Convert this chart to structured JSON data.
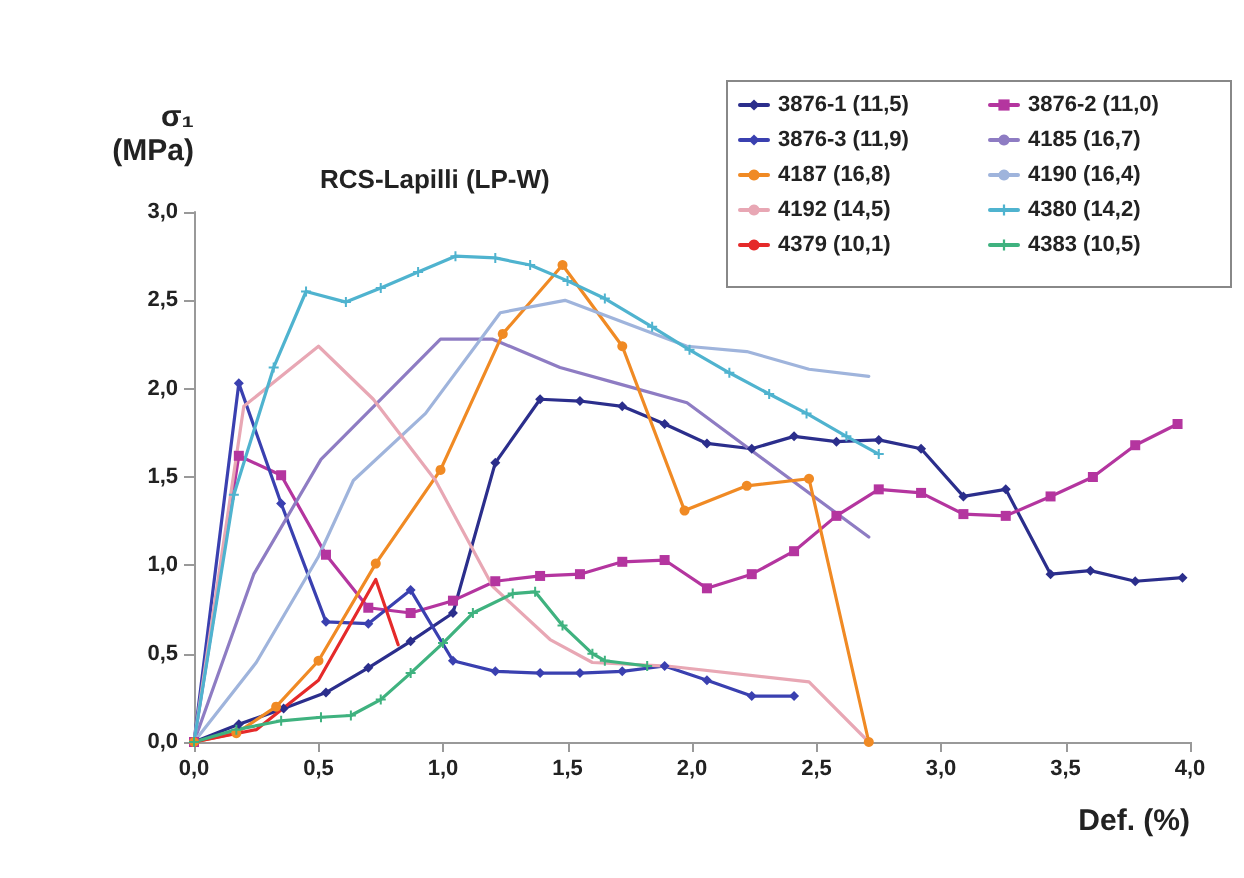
{
  "chart_data": {
    "type": "line",
    "title": "RCS-Lapilli (LP-W)",
    "xlabel": "Def. (%)",
    "ylabel": "σ₁ (MPa)",
    "xlim": [
      0,
      4
    ],
    "xticks": [
      {
        "value": 0,
        "label": "0,0"
      },
      {
        "value": 0.5,
        "label": "0,5"
      },
      {
        "value": 1,
        "label": "1,0"
      },
      {
        "value": 1.5,
        "label": "1,5"
      },
      {
        "value": 2,
        "label": "2,0"
      },
      {
        "value": 2.5,
        "label": "2,5"
      },
      {
        "value": 3,
        "label": "3,0"
      },
      {
        "value": 3.5,
        "label": "3,5"
      },
      {
        "value": 4,
        "label": "4,0"
      }
    ],
    "ylim": [
      0,
      3
    ],
    "yticks": [
      {
        "value": 0,
        "label": "0,0"
      },
      {
        "value": 0.5,
        "label": "0,5"
      },
      {
        "value": 1,
        "label": "1,0"
      },
      {
        "value": 1.5,
        "label": "1,5"
      },
      {
        "value": 2,
        "label": "2,0"
      },
      {
        "value": 2.5,
        "label": "2,5"
      },
      {
        "value": 3,
        "label": "3,0"
      }
    ],
    "grid": false,
    "legend": "top right",
    "series": [
      {
        "name": "3876-1 (11,5)",
        "color": "#2b2e8c",
        "marker": "diamond",
        "x": [
          0,
          0.18,
          0.36,
          0.53,
          0.7,
          0.87,
          1.04,
          1.21,
          1.39,
          1.55,
          1.72,
          1.89,
          2.06,
          2.24,
          2.41,
          2.58,
          2.75,
          2.92,
          3.09,
          3.26,
          3.44,
          3.6,
          3.78,
          3.97
        ],
        "values": [
          0,
          0.1,
          0.19,
          0.28,
          0.42,
          0.57,
          0.73,
          1.58,
          1.94,
          1.93,
          1.9,
          1.8,
          1.69,
          1.66,
          1.73,
          1.7,
          1.71,
          1.66,
          1.39,
          1.43,
          0.95,
          0.97,
          0.91,
          0.93
        ]
      },
      {
        "name": "3876-2 (11,0)",
        "color": "#b4359f",
        "marker": "square",
        "x": [
          0,
          0.18,
          0.35,
          0.53,
          0.7,
          0.87,
          1.04,
          1.21,
          1.39,
          1.55,
          1.72,
          1.89,
          2.06,
          2.24,
          2.41,
          2.58,
          2.75,
          2.92,
          3.09,
          3.26,
          3.44,
          3.61,
          3.78,
          3.95
        ],
        "values": [
          0,
          1.62,
          1.51,
          1.06,
          0.76,
          0.73,
          0.8,
          0.91,
          0.94,
          0.95,
          1.02,
          1.03,
          0.87,
          0.95,
          1.08,
          1.28,
          1.43,
          1.41,
          1.29,
          1.28,
          1.39,
          1.5,
          1.68,
          1.8
        ]
      },
      {
        "name": "3876-3 (11,9)",
        "color": "#3a40b0",
        "marker": "diamond",
        "x": [
          0,
          0.18,
          0.35,
          0.53,
          0.7,
          0.87,
          1.04,
          1.21,
          1.39,
          1.55,
          1.72,
          1.89,
          2.06,
          2.24,
          2.41
        ],
        "values": [
          0,
          2.03,
          1.35,
          0.68,
          0.67,
          0.86,
          0.46,
          0.4,
          0.39,
          0.39,
          0.4,
          0.43,
          0.35,
          0.26,
          0.26
        ]
      },
      {
        "name": "4185 (16,7)",
        "color": "#8e7cc3",
        "marker": "none",
        "x": [
          0,
          0.24,
          0.51,
          0.75,
          0.99,
          1.2,
          1.47,
          1.7,
          1.98,
          2.71
        ],
        "values": [
          0,
          0.95,
          1.6,
          1.94,
          2.28,
          2.28,
          2.12,
          2.03,
          1.92,
          1.16
        ]
      },
      {
        "name": "4187 (16,8)",
        "color": "#f08a24",
        "marker": "circle",
        "x": [
          0,
          0.17,
          0.33,
          0.5,
          0.73,
          0.99,
          1.24,
          1.48,
          1.72,
          1.97,
          2.22,
          2.47,
          2.71
        ],
        "values": [
          0,
          0.05,
          0.2,
          0.46,
          1.01,
          1.54,
          2.31,
          2.7,
          2.24,
          1.31,
          1.45,
          1.49,
          0
        ]
      },
      {
        "name": "4190 (16,4)",
        "color": "#9fb4dc",
        "marker": "none",
        "x": [
          0,
          0.25,
          0.5,
          0.64,
          0.93,
          1.23,
          1.49,
          1.98,
          2.22,
          2.47,
          2.71
        ],
        "values": [
          0,
          0.45,
          1.05,
          1.48,
          1.86,
          2.43,
          2.5,
          2.24,
          2.21,
          2.11,
          2.07
        ]
      },
      {
        "name": "4192 (14,5)",
        "color": "#e8a7b4",
        "marker": "none",
        "x": [
          0,
          0.2,
          0.5,
          0.72,
          0.97,
          1.2,
          1.43,
          1.6,
          1.9,
          2.47,
          2.71
        ],
        "values": [
          0,
          1.9,
          2.24,
          1.94,
          1.48,
          0.88,
          0.58,
          0.45,
          0.43,
          0.34,
          0
        ]
      },
      {
        "name": "4380 (14,2)",
        "color": "#4fb3cf",
        "marker": "cross",
        "x": [
          0,
          0.16,
          0.32,
          0.45,
          0.61,
          0.75,
          0.9,
          1.05,
          1.21,
          1.35,
          1.5,
          1.65,
          1.84,
          1.99,
          2.15,
          2.31,
          2.46,
          2.62,
          2.75
        ],
        "values": [
          0,
          1.4,
          2.12,
          2.55,
          2.49,
          2.57,
          2.66,
          2.75,
          2.74,
          2.7,
          2.61,
          2.51,
          2.35,
          2.22,
          2.09,
          1.97,
          1.86,
          1.73,
          1.63
        ]
      },
      {
        "name": "4379 (10,1)",
        "color": "#e52a2a",
        "marker": "none",
        "x": [
          0,
          0.25,
          0.5,
          0.73,
          0.82
        ],
        "values": [
          0,
          0.07,
          0.35,
          0.92,
          0.55
        ]
      },
      {
        "name": "4383 (10,5)",
        "color": "#3fb27f",
        "marker": "cross",
        "x": [
          0,
          0.17,
          0.35,
          0.51,
          0.63,
          0.75,
          0.87,
          1.0,
          1.12,
          1.28,
          1.37,
          1.48,
          1.6,
          1.65,
          1.82
        ],
        "values": [
          0,
          0.07,
          0.12,
          0.14,
          0.15,
          0.24,
          0.39,
          0.56,
          0.73,
          0.84,
          0.85,
          0.66,
          0.5,
          0.46,
          0.43
        ]
      }
    ]
  }
}
